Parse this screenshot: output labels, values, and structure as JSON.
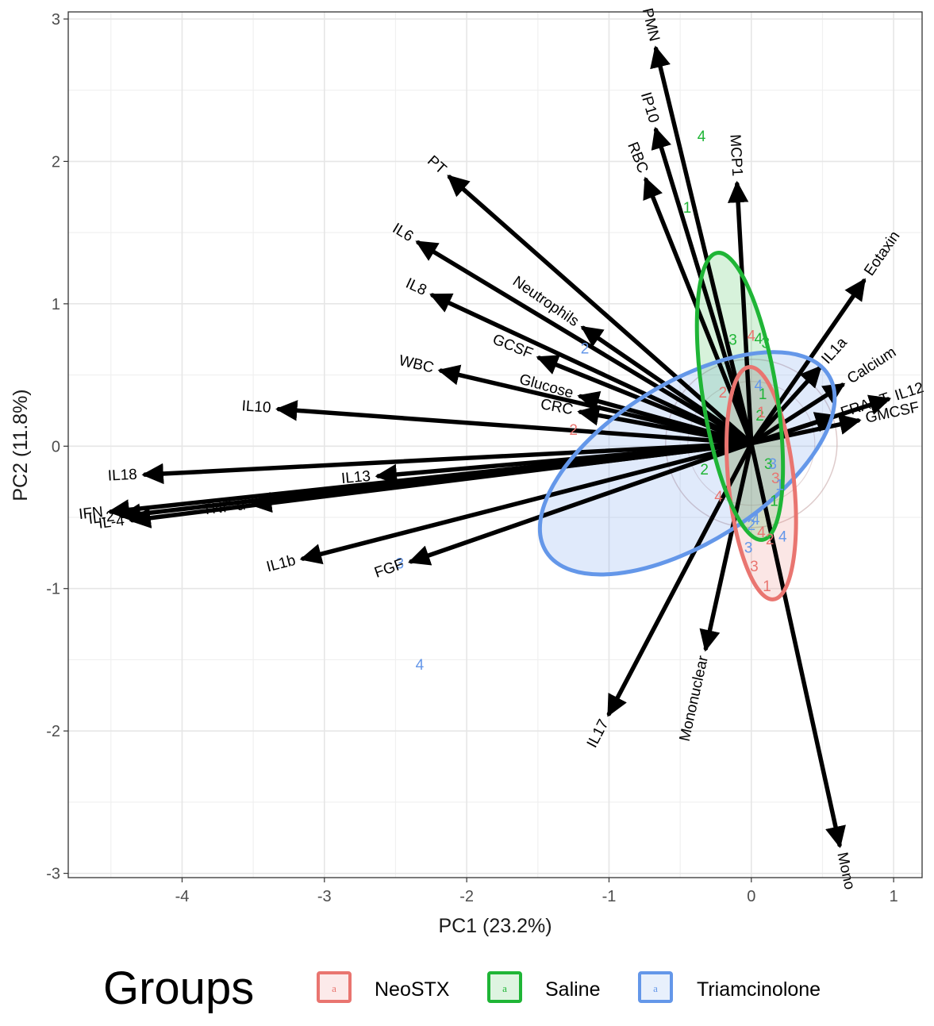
{
  "chart_data": {
    "type": "scatter",
    "subtype": "pca-biplot",
    "xlabel": "PC1 (23.2%)",
    "ylabel": "PC2 (11.8%)",
    "xlim": [
      -4.8,
      1.2
    ],
    "ylim": [
      -3.03,
      3.05
    ],
    "xticks": [
      -4,
      -3,
      -2,
      -1,
      0,
      1
    ],
    "yticks": [
      -3,
      -2,
      -1,
      0,
      1,
      2,
      3
    ],
    "grid": true,
    "origin": [
      0.0,
      0.02
    ],
    "legend": {
      "title": "Groups",
      "position": "bottom",
      "entries": [
        {
          "name": "NeoSTX",
          "color": "#E97570",
          "key": "a"
        },
        {
          "name": "Saline",
          "color": "#1FB536",
          "key": "a"
        },
        {
          "name": "Triamcinolone",
          "color": "#6497E9",
          "key": "a"
        }
      ]
    },
    "vectors": [
      {
        "label": "PMN",
        "x": -0.67,
        "y": 2.79
      },
      {
        "label": "IP10",
        "x": -0.67,
        "y": 2.22
      },
      {
        "label": "RBC",
        "x": -0.74,
        "y": 1.87
      },
      {
        "label": "MCP1",
        "x": -0.1,
        "y": 1.84
      },
      {
        "label": "PT",
        "x": -2.12,
        "y": 1.89
      },
      {
        "label": "IL6",
        "x": -2.34,
        "y": 1.43
      },
      {
        "label": "IL8",
        "x": -2.24,
        "y": 1.06
      },
      {
        "label": "Neutrophils",
        "x": -1.18,
        "y": 0.83
      },
      {
        "label": "GCSF",
        "x": -1.49,
        "y": 0.62
      },
      {
        "label": "WBC",
        "x": -2.18,
        "y": 0.53
      },
      {
        "label": "Glucose",
        "x": -1.2,
        "y": 0.35
      },
      {
        "label": "CRC",
        "x": -1.2,
        "y": 0.24
      },
      {
        "label": "IL10",
        "x": -3.32,
        "y": 0.26
      },
      {
        "label": "Eotaxin",
        "x": 0.79,
        "y": 1.16
      },
      {
        "label": "IL1a",
        "x": 0.48,
        "y": 0.55
      },
      {
        "label": "Calcium",
        "x": 0.64,
        "y": 0.43
      },
      {
        "label": "IL12",
        "x": 0.96,
        "y": 0.33
      },
      {
        "label": "FRACT",
        "x": 0.58,
        "y": 0.21
      },
      {
        "label": "GMCSF",
        "x": 0.75,
        "y": 0.18
      },
      {
        "label": "IL18",
        "x": -4.26,
        "y": -0.2
      },
      {
        "label": "IL13",
        "x": -2.62,
        "y": -0.21
      },
      {
        "label": "IFN",
        "x": -4.5,
        "y": -0.46
      },
      {
        "label": "IL-2",
        "x": -4.42,
        "y": -0.49
      },
      {
        "label": "IL-4",
        "x": -4.35,
        "y": -0.52
      },
      {
        "label": "TNF-α",
        "x": -3.5,
        "y": -0.41
      },
      {
        "label": "IL1b",
        "x": -3.15,
        "y": -0.79
      },
      {
        "label": "FGF",
        "x": -2.39,
        "y": -0.81
      },
      {
        "label": "IL17",
        "x": -1.0,
        "y": -1.88
      },
      {
        "label": "Mononuclear",
        "x": -0.32,
        "y": -1.42
      },
      {
        "label": "Mono",
        "x": 0.62,
        "y": -2.8
      }
    ],
    "points": [
      {
        "label": "4",
        "group": "Saline",
        "x": -0.35,
        "y": 2.18
      },
      {
        "label": "1",
        "group": "Saline",
        "x": -0.45,
        "y": 1.68
      },
      {
        "label": "3",
        "group": "Saline",
        "x": -0.13,
        "y": 0.75
      },
      {
        "label": "4",
        "group": "Saline",
        "x": 0.05,
        "y": 0.76
      },
      {
        "label": "3",
        "group": "Saline",
        "x": 0.1,
        "y": 0.73
      },
      {
        "label": "1",
        "group": "Saline",
        "x": 0.08,
        "y": 0.37
      },
      {
        "label": "2",
        "group": "Saline",
        "x": 0.06,
        "y": 0.22
      },
      {
        "label": "2",
        "group": "Saline",
        "x": -0.33,
        "y": -0.16
      },
      {
        "label": "3",
        "group": "Saline",
        "x": 0.12,
        "y": -0.12
      },
      {
        "label": "1",
        "group": "Saline",
        "x": 0.16,
        "y": -0.38
      },
      {
        "label": "4",
        "group": "NeoSTX",
        "x": 0.0,
        "y": 0.78
      },
      {
        "label": "2",
        "group": "NeoSTX",
        "x": -0.2,
        "y": 0.38
      },
      {
        "label": "1",
        "group": "NeoSTX",
        "x": 0.07,
        "y": 0.24
      },
      {
        "label": "2",
        "group": "NeoSTX",
        "x": -1.25,
        "y": 0.12
      },
      {
        "label": "3",
        "group": "NeoSTX",
        "x": 0.17,
        "y": -0.22
      },
      {
        "label": "4",
        "group": "NeoSTX",
        "x": -0.23,
        "y": -0.35
      },
      {
        "label": "4",
        "group": "NeoSTX",
        "x": 0.07,
        "y": -0.6
      },
      {
        "label": "2",
        "group": "NeoSTX",
        "x": 0.13,
        "y": -0.65
      },
      {
        "label": "3",
        "group": "NeoSTX",
        "x": 0.02,
        "y": -0.84
      },
      {
        "label": "1",
        "group": "NeoSTX",
        "x": 0.11,
        "y": -0.98
      },
      {
        "label": "2",
        "group": "Triamcinolone",
        "x": -1.17,
        "y": 0.69
      },
      {
        "label": "4",
        "group": "Triamcinolone",
        "x": 0.05,
        "y": 0.43
      },
      {
        "label": "3",
        "group": "Triamcinolone",
        "x": 0.15,
        "y": -0.12
      },
      {
        "label": "1",
        "group": "Triamcinolone",
        "x": 0.2,
        "y": -0.27
      },
      {
        "label": "4",
        "group": "Triamcinolone",
        "x": 0.03,
        "y": -0.51
      },
      {
        "label": "2",
        "group": "Triamcinolone",
        "x": 0.0,
        "y": -0.55
      },
      {
        "label": "4",
        "group": "Triamcinolone",
        "x": 0.22,
        "y": -0.63
      },
      {
        "label": "3",
        "group": "Triamcinolone",
        "x": -0.02,
        "y": -0.71
      },
      {
        "label": "3",
        "group": "Triamcinolone",
        "x": -2.47,
        "y": -0.82
      },
      {
        "label": "4",
        "group": "Triamcinolone",
        "x": -2.33,
        "y": -1.53
      }
    ],
    "ellipses": [
      {
        "group": "Saline",
        "cx": -0.08,
        "cy": 0.35,
        "rx": 0.26,
        "ry": 1.02,
        "angle_deg": -9
      },
      {
        "group": "NeoSTX",
        "cx": 0.07,
        "cy": -0.26,
        "rx": 0.23,
        "ry": 0.82,
        "angle_deg": -6
      },
      {
        "group": "Triamcinolone",
        "cx": -0.45,
        "cy": -0.12,
        "rx": 1.17,
        "ry": 0.56,
        "angle_deg": -32
      }
    ]
  }
}
